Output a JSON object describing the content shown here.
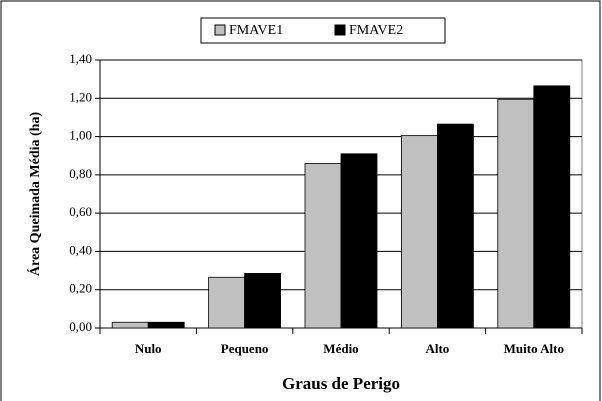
{
  "chart_data": {
    "type": "bar",
    "xlabel": "Graus de Perigo",
    "ylabel": "Área Queimada Média (ha)",
    "categories": [
      "Nulo",
      "Pequeno",
      "Médio",
      "Alto",
      "Muito Alto"
    ],
    "series": [
      {
        "name": "FMAVE1",
        "color": "#c0c0c0",
        "values": [
          0.03,
          0.265,
          0.86,
          1.005,
          1.195
        ]
      },
      {
        "name": "FMAVE2",
        "color": "#000000",
        "values": [
          0.03,
          0.285,
          0.91,
          1.065,
          1.265
        ]
      }
    ],
    "ylim": [
      0,
      1.4
    ],
    "yticks": [
      {
        "value": 0,
        "label": "0,00"
      },
      {
        "value": 0.2,
        "label": "0,20"
      },
      {
        "value": 0.4,
        "label": "0,40"
      },
      {
        "value": 0.6,
        "label": "0,60"
      },
      {
        "value": 0.8,
        "label": "0,80"
      },
      {
        "value": 1.0,
        "label": "1,00"
      },
      {
        "value": 1.2,
        "label": "1,20"
      },
      {
        "value": 1.4,
        "label": "1,40"
      }
    ],
    "grid": true,
    "legend": "top"
  }
}
